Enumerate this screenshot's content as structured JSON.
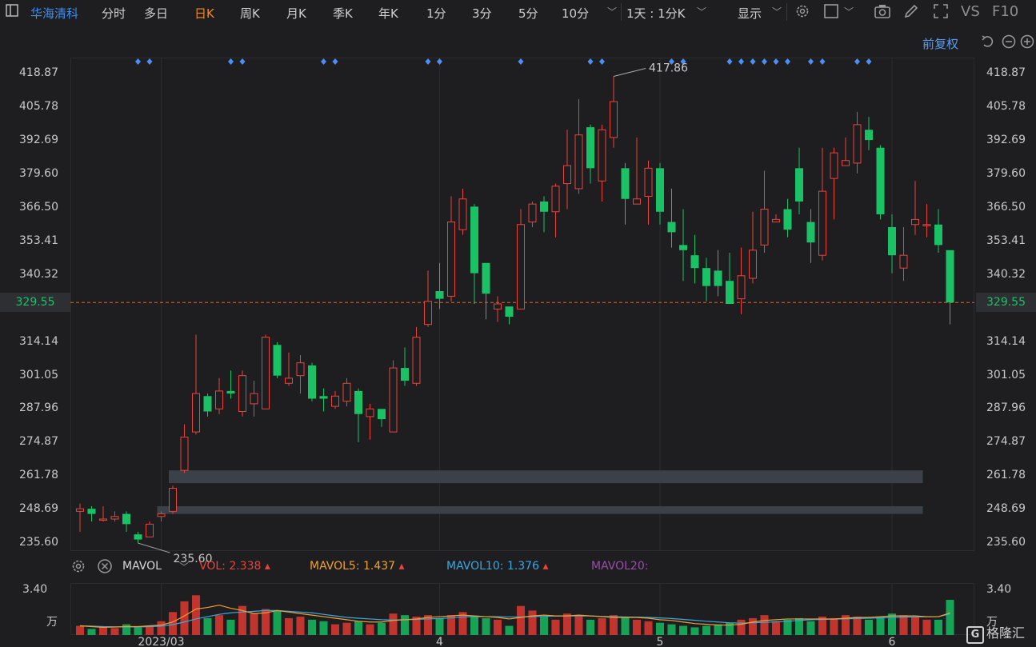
{
  "toolbar": {
    "stock_name": "华海清科",
    "tabs": [
      "分时",
      "多日",
      "日K",
      "周K",
      "月K",
      "季K",
      "年K",
      "1分",
      "3分",
      "5分",
      "10分"
    ],
    "active_tab": "日K",
    "multi_day": "1天 : 1分K",
    "display": "显示",
    "vs": "VS",
    "f10": "F10"
  },
  "adjust_label": "前复权",
  "colors": {
    "up": "#e8433c",
    "down": "#1ac265",
    "price_line": "#e0692a",
    "band": "#3c4048",
    "marker": "#4b8ff5"
  },
  "price_axis": {
    "ticks": [
      "418.87",
      "405.78",
      "392.69",
      "379.60",
      "366.50",
      "353.41",
      "340.32",
      "314.14",
      "301.05",
      "287.96",
      "274.87",
      "261.78",
      "248.69",
      "235.60"
    ],
    "current": "329.55"
  },
  "chart_data": {
    "type": "candlestick",
    "ylim": [
      232.5,
      425.2
    ],
    "current_price": 329.55,
    "high_label": "417.86",
    "low_label": "235.60",
    "x_labels": [
      {
        "label": "2023/03",
        "index": 7
      },
      {
        "label": "4",
        "index": 31
      },
      {
        "label": "5",
        "index": 50
      },
      {
        "label": "6",
        "index": 70
      }
    ],
    "bands": [
      {
        "from": 8,
        "to": 73,
        "y1": 259,
        "y2": 264
      },
      {
        "from": 7,
        "to": 73,
        "y1": 247,
        "y2": 250
      }
    ],
    "marker_index": [
      5,
      6,
      13,
      14,
      21,
      22,
      30,
      31,
      38,
      44,
      45,
      51,
      52,
      56,
      57,
      58,
      59,
      60,
      61,
      63,
      64,
      67,
      68
    ],
    "candles": [
      [
        248,
        249,
        251,
        240
      ],
      [
        249,
        247,
        250,
        244
      ],
      [
        245,
        245,
        250,
        244
      ],
      [
        245,
        246,
        248,
        244
      ],
      [
        247,
        243,
        248,
        240
      ],
      [
        239,
        237,
        240,
        235.6
      ],
      [
        238,
        243,
        244,
        238
      ],
      [
        246,
        247,
        248,
        244
      ],
      [
        248,
        257,
        258,
        247
      ],
      [
        264,
        277,
        282,
        263
      ],
      [
        279,
        294,
        317,
        278
      ],
      [
        293,
        287,
        294,
        285
      ],
      [
        288,
        295,
        300,
        286
      ],
      [
        295,
        294,
        303,
        292
      ],
      [
        287,
        301,
        303,
        285
      ],
      [
        290,
        294,
        299,
        285
      ],
      [
        288,
        316,
        317,
        288
      ],
      [
        313,
        301,
        314,
        300
      ],
      [
        298,
        300,
        310,
        297
      ],
      [
        301,
        306,
        309,
        294
      ],
      [
        305,
        292,
        306,
        291
      ],
      [
        293,
        292,
        296,
        287
      ],
      [
        289,
        293,
        295,
        288
      ],
      [
        291,
        298,
        300,
        289
      ],
      [
        295,
        286,
        296,
        275
      ],
      [
        285,
        288,
        290,
        276
      ],
      [
        288,
        284,
        286,
        281
      ],
      [
        279,
        304,
        307,
        279
      ],
      [
        304,
        299,
        312,
        297
      ],
      [
        298,
        316,
        320,
        297
      ],
      [
        321,
        330,
        342,
        320
      ],
      [
        334,
        331,
        345,
        327
      ],
      [
        332,
        361,
        371,
        330
      ],
      [
        358,
        370,
        374,
        356
      ],
      [
        367,
        341,
        368,
        329
      ],
      [
        345,
        333,
        344,
        323
      ],
      [
        327,
        329,
        332,
        322
      ],
      [
        328,
        324,
        326,
        321
      ],
      [
        327,
        360,
        366,
        327
      ],
      [
        361,
        368,
        369,
        359
      ],
      [
        369,
        365,
        371,
        357
      ],
      [
        365,
        375,
        376,
        355
      ],
      [
        376,
        383,
        397,
        366
      ],
      [
        374,
        395,
        409,
        372
      ],
      [
        398,
        382,
        399,
        376
      ],
      [
        377,
        397,
        399,
        369
      ],
      [
        394,
        408,
        417.86,
        390
      ],
      [
        382,
        370,
        384,
        360
      ],
      [
        368,
        370,
        394,
        368
      ],
      [
        371,
        382,
        385,
        360
      ],
      [
        382,
        365,
        384,
        360
      ],
      [
        361,
        357,
        374,
        351
      ],
      [
        352,
        350,
        366,
        338
      ],
      [
        348,
        343,
        356,
        337
      ],
      [
        343,
        336,
        347,
        330
      ],
      [
        342,
        336,
        350,
        332
      ],
      [
        338,
        329,
        349,
        330
      ],
      [
        331,
        340,
        351,
        325
      ],
      [
        339,
        350,
        365,
        337
      ],
      [
        352,
        366,
        381,
        349
      ],
      [
        361,
        362,
        364,
        361
      ],
      [
        366,
        358,
        370,
        355
      ],
      [
        382,
        369,
        390,
        364
      ],
      [
        361,
        353,
        366,
        345
      ],
      [
        348,
        373,
        390,
        346
      ],
      [
        378,
        388,
        390,
        362
      ],
      [
        383,
        385,
        394,
        383
      ],
      [
        384,
        399,
        404,
        380
      ],
      [
        397,
        393,
        402,
        389
      ],
      [
        390,
        364,
        391,
        362
      ],
      [
        359,
        348,
        364,
        341
      ],
      [
        343,
        348,
        359,
        338
      ],
      [
        360,
        362,
        377,
        356
      ],
      [
        360,
        360,
        368,
        355
      ],
      [
        360,
        352,
        366,
        349
      ],
      [
        350,
        329.55,
        349,
        321
      ]
    ],
    "volume": {
      "label": "MAVOL",
      "items": [
        {
          "name": "VOL",
          "value": "2.338"
        },
        {
          "name": "MAVOL5",
          "value": "1.437"
        },
        {
          "name": "MAVOL10",
          "value": "1.376"
        },
        {
          "name": "MAVOL20",
          "value": ""
        }
      ],
      "axis_top": "3.40",
      "axis_unit": "万",
      "ylim": [
        0,
        3.4
      ],
      "bars": [
        0.6,
        0.4,
        0.5,
        0.45,
        0.7,
        0.5,
        0.6,
        0.9,
        1.5,
        2.2,
        2.6,
        1.1,
        1.3,
        1.0,
        1.9,
        1.4,
        1.7,
        1.6,
        1.1,
        1.2,
        1.0,
        0.9,
        0.7,
        0.8,
        0.9,
        0.7,
        0.8,
        1.4,
        1.3,
        1.2,
        1.3,
        1.1,
        1.3,
        1.5,
        1.2,
        1.1,
        1.0,
        0.6,
        1.9,
        1.6,
        1.2,
        1.0,
        1.4,
        1.3,
        1.0,
        1.1,
        1.3,
        1.2,
        1.0,
        0.9,
        0.8,
        0.7,
        0.6,
        0.5,
        0.6,
        0.7,
        0.8,
        1.0,
        1.1,
        1.3,
        0.9,
        1.0,
        1.1,
        0.9,
        1.2,
        1.1,
        1.3,
        1.2,
        1.0,
        1.2,
        1.4,
        1.3,
        1.2,
        1.0,
        1.0,
        2.3
      ],
      "ma5": [
        0.6,
        0.55,
        0.5,
        0.52,
        0.55,
        0.55,
        0.6,
        0.65,
        0.85,
        1.25,
        1.7,
        1.8,
        1.95,
        1.75,
        1.6,
        1.4,
        1.45,
        1.6,
        1.5,
        1.4,
        1.3,
        1.2,
        1.1,
        1.0,
        0.9,
        0.85,
        0.85,
        0.95,
        1.0,
        1.05,
        1.15,
        1.2,
        1.25,
        1.3,
        1.25,
        1.2,
        1.15,
        1.05,
        1.15,
        1.25,
        1.3,
        1.25,
        1.25,
        1.3,
        1.25,
        1.2,
        1.15,
        1.15,
        1.15,
        1.1,
        1.0,
        0.95,
        0.85,
        0.75,
        0.7,
        0.65,
        0.65,
        0.7,
        0.85,
        0.95,
        1.0,
        1.05,
        1.05,
        1.05,
        1.05,
        1.05,
        1.1,
        1.15,
        1.15,
        1.2,
        1.25,
        1.25,
        1.25,
        1.2,
        1.2,
        1.44
      ],
      "ma10": [
        0.6,
        0.58,
        0.55,
        0.54,
        0.53,
        0.53,
        0.55,
        0.58,
        0.68,
        0.85,
        1.05,
        1.2,
        1.35,
        1.45,
        1.5,
        1.55,
        1.6,
        1.6,
        1.55,
        1.5,
        1.45,
        1.35,
        1.25,
        1.15,
        1.1,
        1.05,
        1.0,
        0.98,
        1.0,
        1.02,
        1.05,
        1.08,
        1.12,
        1.18,
        1.2,
        1.2,
        1.2,
        1.18,
        1.18,
        1.2,
        1.22,
        1.24,
        1.25,
        1.25,
        1.25,
        1.22,
        1.2,
        1.18,
        1.17,
        1.15,
        1.12,
        1.08,
        1.02,
        0.96,
        0.9,
        0.85,
        0.8,
        0.78,
        0.8,
        0.83,
        0.86,
        0.9,
        0.95,
        1.0,
        1.02,
        1.04,
        1.06,
        1.08,
        1.1,
        1.12,
        1.15,
        1.17,
        1.18,
        1.19,
        1.2,
        1.38
      ]
    }
  }
}
